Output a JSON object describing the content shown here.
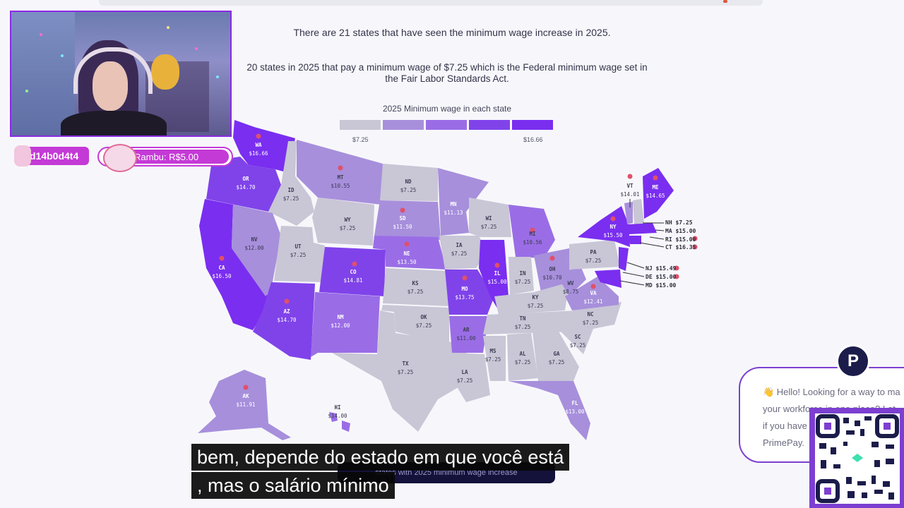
{
  "page": {
    "headline": "There are 21 states that have seen the minimum wage increase in 2025.",
    "subheadline": "20 states in 2025 that pay a minimum wage of $7.25 which is the Federal minimum wage set in the Fair Labor Standards Act."
  },
  "legend": {
    "title": "2025 Minimum wage in each state",
    "min": "$7.25",
    "max": "$16.66",
    "colors": [
      "#c9c6d6",
      "#a78fdc",
      "#9a6de6",
      "#8043ea",
      "#7a2ef0"
    ]
  },
  "states": [
    {
      "abbr": "WA",
      "value": "$16.66"
    },
    {
      "abbr": "OR",
      "value": "$14.70"
    },
    {
      "abbr": "CA",
      "value": "$16.50"
    },
    {
      "abbr": "ID",
      "value": "$7.25"
    },
    {
      "abbr": "NV",
      "value": "$12.00"
    },
    {
      "abbr": "MT",
      "value": "$10.55"
    },
    {
      "abbr": "WY",
      "value": "$7.25"
    },
    {
      "abbr": "UT",
      "value": "$7.25"
    },
    {
      "abbr": "AZ",
      "value": "$14.70"
    },
    {
      "abbr": "CO",
      "value": "$14.81"
    },
    {
      "abbr": "NM",
      "value": "$12.00"
    },
    {
      "abbr": "ND",
      "value": "$7.25"
    },
    {
      "abbr": "SD",
      "value": "$11.50"
    },
    {
      "abbr": "NE",
      "value": "$13.50"
    },
    {
      "abbr": "KS",
      "value": "$7.25"
    },
    {
      "abbr": "OK",
      "value": "$7.25"
    },
    {
      "abbr": "TX",
      "value": "$7.25"
    },
    {
      "abbr": "MN",
      "value": "$11.13"
    },
    {
      "abbr": "IA",
      "value": "$7.25"
    },
    {
      "abbr": "MO",
      "value": "$13.75"
    },
    {
      "abbr": "AR",
      "value": "$11.00"
    },
    {
      "abbr": "LA",
      "value": "$7.25"
    },
    {
      "abbr": "WI",
      "value": "$7.25"
    },
    {
      "abbr": "IL",
      "value": "$15.00"
    },
    {
      "abbr": "MI",
      "value": "$10.56"
    },
    {
      "abbr": "IN",
      "value": "$7.25"
    },
    {
      "abbr": "OH",
      "value": "$10.70"
    },
    {
      "abbr": "KY",
      "value": "$7.25"
    },
    {
      "abbr": "TN",
      "value": "$7.25"
    },
    {
      "abbr": "MS",
      "value": "$7.25"
    },
    {
      "abbr": "AL",
      "value": "$7.25"
    },
    {
      "abbr": "GA",
      "value": "$7.25"
    },
    {
      "abbr": "FL",
      "value": "$13.00"
    },
    {
      "abbr": "SC",
      "value": "$7.25"
    },
    {
      "abbr": "NC",
      "value": "$7.25"
    },
    {
      "abbr": "VA",
      "value": "$12.41"
    },
    {
      "abbr": "WV",
      "value": "$8.75"
    },
    {
      "abbr": "PA",
      "value": "$7.25"
    },
    {
      "abbr": "NY",
      "value": "$15.50"
    },
    {
      "abbr": "VT",
      "value": "$14.01"
    },
    {
      "abbr": "ME",
      "value": "$14.65"
    },
    {
      "abbr": "AK",
      "value": "$11.91"
    },
    {
      "abbr": "HI",
      "value": "$14.00"
    }
  ],
  "side_labels": [
    "NH $7.25",
    "MA $15.00",
    "RI $15.00",
    "CT $16.35",
    "NJ $15.49",
    "DE $15.00",
    "MD $15.00"
  ],
  "stream": {
    "alert1_text": "d14b0d4t4",
    "alert2_text": "Rambu: R$5.00"
  },
  "chat": {
    "lines": [
      "👋 Hello! Looking for a way to ma",
      "your workforce in one place? Let",
      "if you have",
      "PrimePay."
    ],
    "logo_letter": "P"
  },
  "bottom_button": "states with 2025 minimum wage increase",
  "subtitles": {
    "line1": "bem, depende do estado em que você está",
    "line2": ", mas o salário mínimo"
  }
}
